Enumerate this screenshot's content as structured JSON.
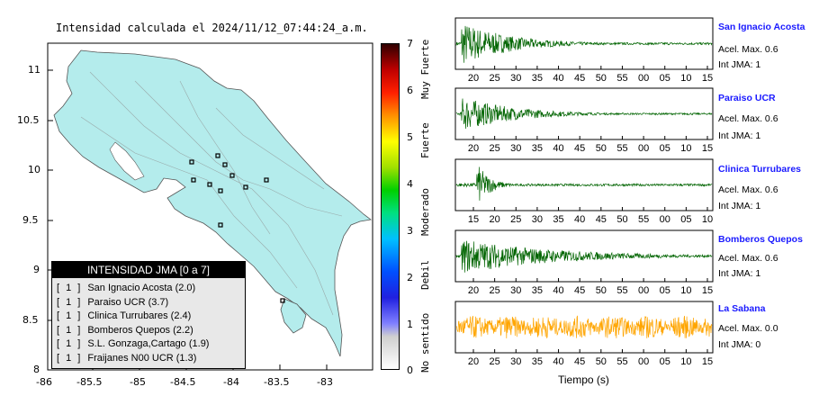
{
  "map": {
    "title": "Intensidad calculada el 2024/11/12_07:44:24_a.m.",
    "x_ticks": [
      "-86",
      "-85.5",
      "-85",
      "-84.5",
      "-84",
      "-83.5",
      "-83"
    ],
    "y_ticks": [
      "11",
      "10.5",
      "10",
      "9.5",
      "9",
      "8.5",
      "8"
    ],
    "land_color": "#b4ecec",
    "legend": {
      "title": "INTENSIDAD JMA [0 a 7]",
      "items": [
        {
          "level": "[ 1 ]",
          "label": "San Ignacio Acosta (2.0)"
        },
        {
          "level": "[ 1 ]",
          "label": "Paraiso UCR (3.7)"
        },
        {
          "level": "[ 1 ]",
          "label": "Clinica Turrubares (2.4)"
        },
        {
          "level": "[ 1 ]",
          "label": "Bomberos Quepos (2.2)"
        },
        {
          "level": "[ 1 ]",
          "label": "S.L. Gonzaga,Cartago (1.9)"
        },
        {
          "level": "[ 1 ]",
          "label": "Fraijanes N00 UCR (1.3)"
        }
      ]
    }
  },
  "colorbar": {
    "ticks": [
      "7",
      "6",
      "5",
      "4",
      "3",
      "2",
      "1",
      "0"
    ],
    "categories": [
      "Muy Fuerte",
      "Fuerte",
      "Moderado",
      "Debil",
      "No sentido"
    ]
  },
  "waveforms": {
    "xlabel": "Tiempo (s)",
    "stations": [
      {
        "name": "San Ignacio Acosta",
        "acc": "Acel. Max. 0.6",
        "jma": "Int JMA: 1",
        "color": "#006400",
        "ticks": [
          "20",
          "25",
          "30",
          "35",
          "40",
          "45",
          "50",
          "55",
          "00",
          "05",
          "10",
          "15"
        ],
        "burst": 0.02,
        "decay": 0.18,
        "amp": 0.95
      },
      {
        "name": "Paraiso UCR",
        "acc": "Acel. Max. 0.6",
        "jma": "Int JMA: 1",
        "color": "#006400",
        "ticks": [
          "20",
          "25",
          "30",
          "35",
          "40",
          "45",
          "50",
          "55",
          "00",
          "05",
          "10",
          "15"
        ],
        "burst": 0.02,
        "decay": 0.2,
        "amp": 0.75
      },
      {
        "name": "Clinica Turrubares",
        "acc": "Acel. Max. 0.6",
        "jma": "Int JMA: 1",
        "color": "#006400",
        "ticks": [
          "15",
          "20",
          "25",
          "30",
          "35",
          "40",
          "45",
          "50",
          "55",
          "00",
          "05",
          "10"
        ],
        "burst": 0.08,
        "decay": 0.05,
        "amp": 0.95
      },
      {
        "name": "Bomberos Quepos",
        "acc": "Acel. Max. 0.6",
        "jma": "Int JMA: 1",
        "color": "#006400",
        "ticks": [
          "20",
          "25",
          "30",
          "35",
          "40",
          "45",
          "50",
          "55",
          "00",
          "05",
          "10",
          "15"
        ],
        "burst": 0.02,
        "decay": 0.35,
        "amp": 0.75
      },
      {
        "name": "La Sabana",
        "acc": "Acel. Max. 0.0",
        "jma": "Int JMA: 0",
        "color": "#ffa500",
        "ticks": [
          "20",
          "25",
          "30",
          "35",
          "40",
          "45",
          "50",
          "55",
          "00",
          "05",
          "10",
          "15"
        ],
        "burst": 0.0,
        "decay": 5.0,
        "amp": 0.8
      }
    ]
  }
}
